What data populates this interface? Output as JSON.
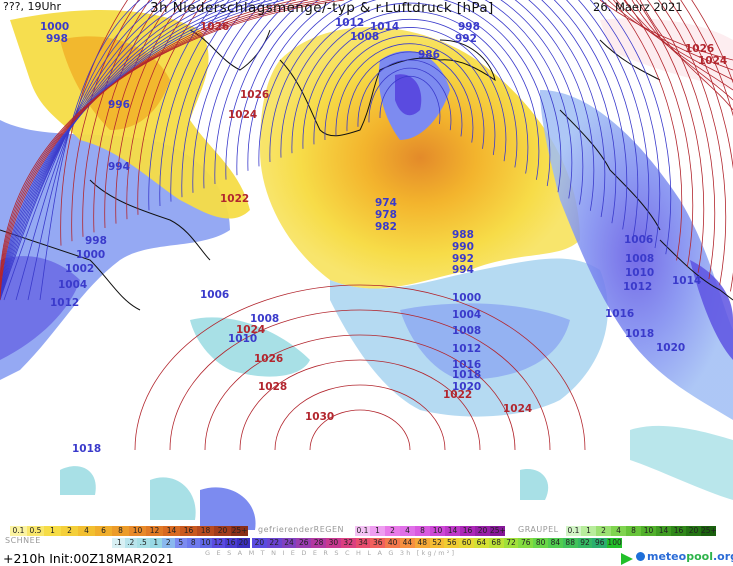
{
  "header": {
    "left": "???, 19Uhr",
    "title": "3h Niederschlagsmenge/-typ & r.Luftdruck [hPa]",
    "date": "26. Maerz 2021"
  },
  "colors": {
    "isobar_low": "#3a3acb",
    "isobar_high": "#b2262e",
    "snow_light": "#a8e0e6",
    "snow_mid": "#7c8bf0",
    "snow_heavy": "#5a4be0",
    "rain_light": "#f6e04a",
    "rain_mid": "#f2b62a",
    "rain_heavy": "#e5862a",
    "freezing_rain": "#e070e8"
  },
  "pressure_labels": [
    {
      "text": "1000",
      "kind": "low"
    },
    {
      "text": "998",
      "kind": "low"
    },
    {
      "text": "996",
      "kind": "low"
    },
    {
      "text": "994",
      "kind": "low"
    },
    {
      "text": "998",
      "kind": "low"
    },
    {
      "text": "1000",
      "kind": "low"
    },
    {
      "text": "1002",
      "kind": "low"
    },
    {
      "text": "1004",
      "kind": "low"
    },
    {
      "text": "1006",
      "kind": "low"
    },
    {
      "text": "1008",
      "kind": "low"
    },
    {
      "text": "1010",
      "kind": "low"
    },
    {
      "text": "1012",
      "kind": "low"
    },
    {
      "text": "1018",
      "kind": "low"
    },
    {
      "text": "1012",
      "kind": "low"
    },
    {
      "text": "1014",
      "kind": "low"
    },
    {
      "text": "1008",
      "kind": "low"
    },
    {
      "text": "998",
      "kind": "low"
    },
    {
      "text": "992",
      "kind": "low"
    },
    {
      "text": "986",
      "kind": "low"
    },
    {
      "text": "974",
      "kind": "low"
    },
    {
      "text": "978",
      "kind": "low"
    },
    {
      "text": "982",
      "kind": "low"
    },
    {
      "text": "988",
      "kind": "low"
    },
    {
      "text": "990",
      "kind": "low"
    },
    {
      "text": "992",
      "kind": "low"
    },
    {
      "text": "994",
      "kind": "low"
    },
    {
      "text": "1000",
      "kind": "low"
    },
    {
      "text": "1004",
      "kind": "low"
    },
    {
      "text": "1008",
      "kind": "low"
    },
    {
      "text": "1012",
      "kind": "low"
    },
    {
      "text": "1016",
      "kind": "low"
    },
    {
      "text": "1018",
      "kind": "low"
    },
    {
      "text": "1020",
      "kind": "low"
    },
    {
      "text": "1006",
      "kind": "low"
    },
    {
      "text": "1008",
      "kind": "low"
    },
    {
      "text": "1010",
      "kind": "low"
    },
    {
      "text": "1012",
      "kind": "low"
    },
    {
      "text": "1014",
      "kind": "low"
    },
    {
      "text": "1016",
      "kind": "low"
    },
    {
      "text": "1018",
      "kind": "low"
    },
    {
      "text": "1020",
      "kind": "low"
    },
    {
      "text": "1026",
      "kind": "high"
    },
    {
      "text": "1026",
      "kind": "high"
    },
    {
      "text": "1024",
      "kind": "high"
    },
    {
      "text": "1022",
      "kind": "high"
    },
    {
      "text": "1024",
      "kind": "high"
    },
    {
      "text": "1026",
      "kind": "high"
    },
    {
      "text": "1028",
      "kind": "high"
    },
    {
      "text": "1030",
      "kind": "high"
    },
    {
      "text": "1022",
      "kind": "high"
    },
    {
      "text": "1024",
      "kind": "high"
    },
    {
      "text": "1026",
      "kind": "high"
    },
    {
      "text": "1024",
      "kind": "high"
    }
  ],
  "legend": {
    "rain_label": "",
    "rain_values": [
      "0.1",
      "0.5",
      "1",
      "2",
      "4",
      "6",
      "8",
      "10",
      "12",
      "14",
      "16",
      "18",
      "20",
      "25+"
    ],
    "freezing_label": "gefrierenderREGEN",
    "freezing_values": [
      "0.1",
      "1",
      "2",
      "4",
      "8",
      "10",
      "14",
      "16",
      "20",
      "25+"
    ],
    "graupel_label": "GRAUPEL",
    "graupel_values": [
      "0.1",
      "1",
      "2",
      "4",
      "8",
      "10",
      "14",
      "16",
      "20",
      "25+"
    ],
    "snow_label": "SCHNEE",
    "snow_values": [
      ".1",
      ".2",
      ".5",
      "1",
      "2",
      "5",
      "8",
      "10",
      "12",
      "16",
      "20"
    ],
    "total_values": [
      "20",
      "22",
      "24",
      "26",
      "28",
      "30",
      "32",
      "34",
      "36",
      "40",
      "44",
      "48",
      "52",
      "56",
      "60",
      "64",
      "68",
      "72",
      "76",
      "80",
      "84",
      "88",
      "92",
      "96",
      "100"
    ],
    "total_label": "G E S A M T N I E D E R S C H L A G   3h   [kg/m²]"
  },
  "footer": {
    "run": "+210h  Init:00Z18MAR2021"
  },
  "logo": {
    "part1": "meteo",
    "part2": "pool",
    "part3": ".org"
  }
}
